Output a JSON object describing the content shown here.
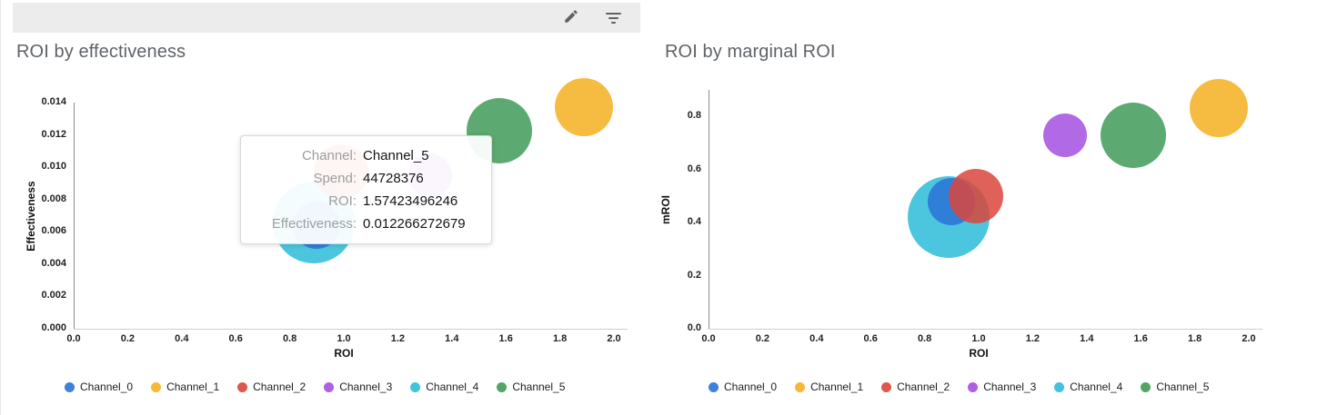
{
  "toolbar": {
    "edit_icon": "pencil-icon",
    "filter_icon": "filter-list-icon"
  },
  "channels": [
    {
      "name": "Channel_0",
      "color": "#2a72d8"
    },
    {
      "name": "Channel_1",
      "color": "#f5b021"
    },
    {
      "name": "Channel_2",
      "color": "#d9453c"
    },
    {
      "name": "Channel_3",
      "color": "#a44fe0"
    },
    {
      "name": "Channel_4",
      "color": "#2cbcd8"
    },
    {
      "name": "Channel_5",
      "color": "#3f9a58"
    }
  ],
  "tooltip": {
    "rows": [
      {
        "label": "Channel:",
        "value": "Channel_5"
      },
      {
        "label": "Spend:",
        "value": "44728376"
      },
      {
        "label": "ROI:",
        "value": "1.57423496246"
      },
      {
        "label": "Effectiveness:",
        "value": "0.012266272679"
      }
    ]
  },
  "chart_data": [
    {
      "type": "scatter",
      "title": "ROI by effectiveness",
      "xlabel": "ROI",
      "ylabel": "Effectiveness",
      "xlim": [
        0.0,
        2.0
      ],
      "ylim": [
        0.0,
        0.014
      ],
      "xticks": [
        "0.0",
        "0.2",
        "0.4",
        "0.6",
        "0.8",
        "1.0",
        "1.2",
        "1.4",
        "1.6",
        "1.8",
        "2.0"
      ],
      "yticks": [
        "0.000",
        "0.002",
        "0.004",
        "0.006",
        "0.008",
        "0.010",
        "0.012",
        "0.014"
      ],
      "grid": false,
      "legend_position": "bottom",
      "points": [
        {
          "channel": "Channel_4",
          "x": 0.89,
          "y": 0.0066,
          "size": 45
        },
        {
          "channel": "Channel_0",
          "x": 0.9,
          "y": 0.0064,
          "size": 26
        },
        {
          "channel": "Channel_2",
          "x": 0.99,
          "y": 0.0097,
          "size": 30
        },
        {
          "channel": "Channel_3",
          "x": 1.32,
          "y": 0.0095,
          "size": 24
        },
        {
          "channel": "Channel_5",
          "x": 1.57423496246,
          "y": 0.012266272679,
          "size": 36
        },
        {
          "channel": "Channel_1",
          "x": 1.89,
          "y": 0.0137,
          "size": 32
        }
      ]
    },
    {
      "type": "scatter",
      "title": "ROI by marginal ROI",
      "xlabel": "ROI",
      "ylabel": "mROI",
      "xlim": [
        0.0,
        2.0
      ],
      "ylim": [
        0.0,
        0.9
      ],
      "xticks": [
        "0.0",
        "0.2",
        "0.4",
        "0.6",
        "0.8",
        "1.0",
        "1.2",
        "1.4",
        "1.6",
        "1.8",
        "2.0"
      ],
      "yticks": [
        "0.0",
        "0.2",
        "0.4",
        "0.6",
        "0.8"
      ],
      "grid": false,
      "legend_position": "bottom",
      "points": [
        {
          "channel": "Channel_4",
          "x": 0.89,
          "y": 0.42,
          "size": 45
        },
        {
          "channel": "Channel_0",
          "x": 0.9,
          "y": 0.48,
          "size": 26
        },
        {
          "channel": "Channel_2",
          "x": 0.99,
          "y": 0.5,
          "size": 30
        },
        {
          "channel": "Channel_3",
          "x": 1.32,
          "y": 0.73,
          "size": 24
        },
        {
          "channel": "Channel_5",
          "x": 1.574,
          "y": 0.73,
          "size": 36
        },
        {
          "channel": "Channel_1",
          "x": 1.89,
          "y": 0.83,
          "size": 32
        }
      ]
    }
  ]
}
